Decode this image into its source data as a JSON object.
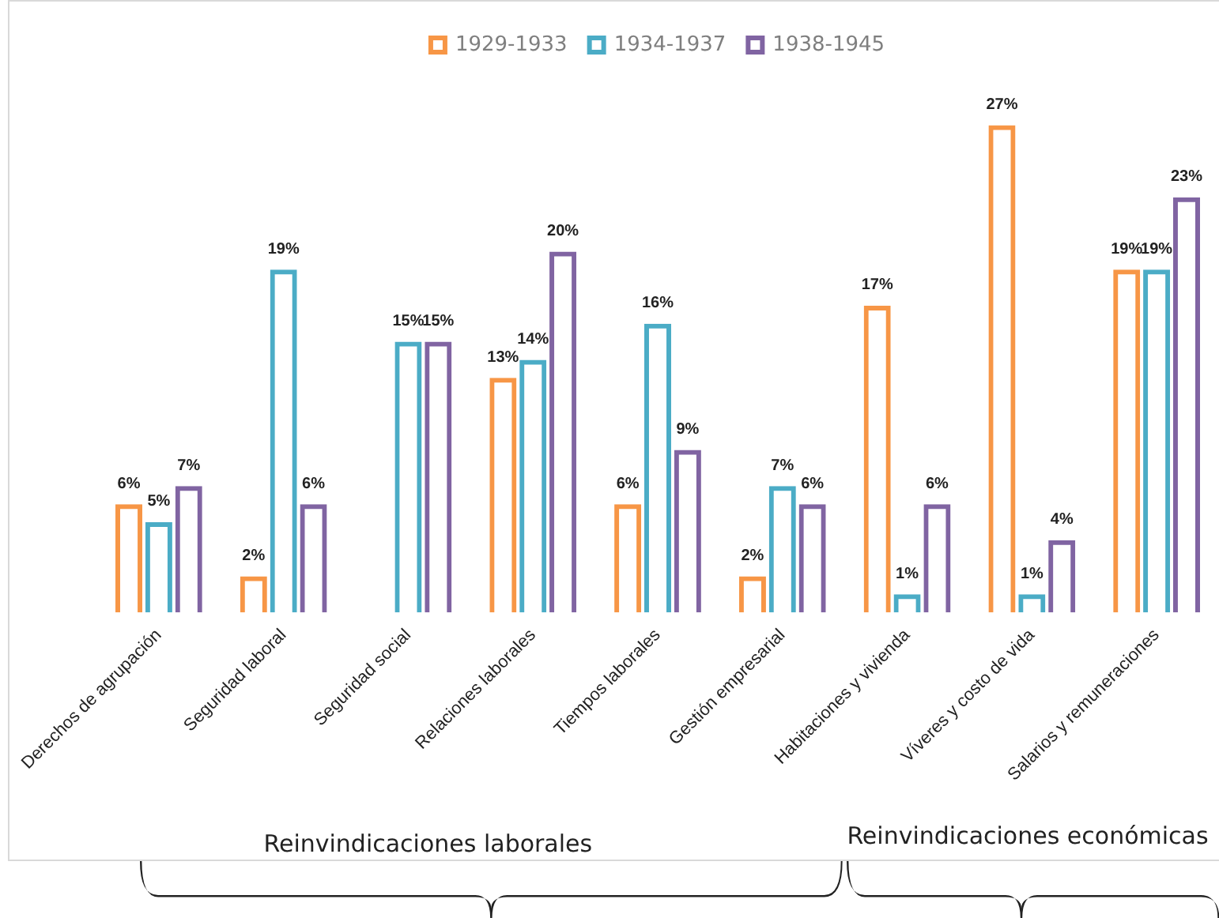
{
  "chart_data": {
    "type": "bar",
    "categories": [
      "Derechos de agrupación",
      "Seguridad laboral",
      "Seguridad social",
      "Relaciones laborales",
      "Tiempos laborales",
      "Gestión empresarial",
      "Habitaciones y vivienda",
      "Víveres y costo de vida",
      "Salarios y remuneraciones"
    ],
    "series": [
      {
        "name": "1929-1933",
        "color": "#f79646",
        "values": [
          6,
          2,
          null,
          13,
          6,
          2,
          17,
          27,
          19
        ],
        "value_labels": [
          "6%",
          "2%",
          null,
          "13%",
          "6%",
          "2%",
          "17%",
          "27%",
          "19%"
        ]
      },
      {
        "name": "1934-1937",
        "color": "#4bacc6",
        "values": [
          5,
          19,
          15,
          14,
          16,
          7,
          1,
          1,
          19
        ],
        "value_labels": [
          "5%",
          "19%",
          "15%",
          "14%",
          "16%",
          "7%",
          "1%",
          "1%",
          "19%"
        ]
      },
      {
        "name": "1938-1945",
        "color": "#8064a2",
        "values": [
          7,
          6,
          15,
          20,
          9,
          6,
          6,
          4,
          23
        ],
        "value_labels": [
          "7%",
          "6%",
          "15%",
          "20%",
          "9%",
          "6%",
          "6%",
          "4%",
          "23%"
        ]
      }
    ],
    "grid": false,
    "legend": "top",
    "annotations": [
      "Reinvindicaciones laborales",
      "Reinvindicaciones económicas"
    ]
  }
}
